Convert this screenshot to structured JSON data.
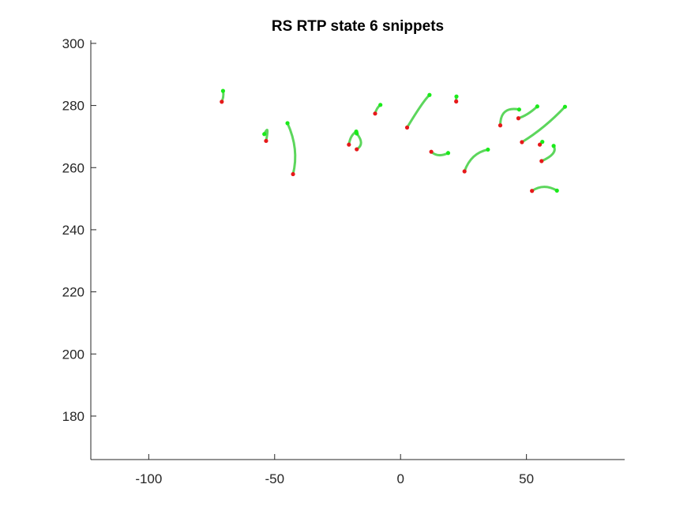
{
  "chart_data": {
    "type": "line",
    "title": "RS  RTP state 6 snippets",
    "xlabel": "",
    "ylabel": "",
    "xlim": [
      -123,
      89
    ],
    "ylim": [
      166,
      301
    ],
    "xticks": [
      -100,
      -50,
      0,
      50
    ],
    "xtick_labels": [
      "-100",
      "-50",
      "0",
      "50"
    ],
    "yticks": [
      180,
      200,
      220,
      240,
      260,
      280,
      300
    ],
    "ytick_labels": [
      "180",
      "200",
      "220",
      "240",
      "260",
      "280",
      "300"
    ],
    "grid": false,
    "legend": "none",
    "colors": {
      "path": "#5cd65c",
      "start": "#e6191a",
      "end": "#1aeb1a"
    },
    "series": [
      {
        "start": [
          -71.0,
          281.2
        ],
        "end": [
          -70.5,
          284.7
        ],
        "mid": [
          -70.4,
          283.0
        ]
      },
      {
        "start": [
          -53.4,
          268.6
        ],
        "end": [
          -54.1,
          270.8
        ],
        "mid": [
          -52.9,
          272.0
        ]
      },
      {
        "start": [
          -42.7,
          257.9
        ],
        "end": [
          -44.9,
          274.3
        ],
        "mid": [
          -42.0,
          266.0
        ]
      },
      {
        "start": [
          -20.5,
          267.4
        ],
        "end": [
          -17.6,
          271.6
        ],
        "mid": [
          -19.5,
          270.0
        ]
      },
      {
        "start": [
          -17.4,
          265.9
        ],
        "end": [
          -17.4,
          271.0
        ],
        "mid": [
          -15.7,
          268.0
        ]
      },
      {
        "start": [
          -10.1,
          277.4
        ],
        "end": [
          -8.0,
          280.2
        ],
        "mid": [
          -9.3,
          279.0
        ]
      },
      {
        "start": [
          2.6,
          272.9
        ],
        "end": [
          11.5,
          283.4
        ],
        "mid": [
          8.0,
          279.8
        ]
      },
      {
        "start": [
          12.2,
          265.1
        ],
        "end": [
          18.9,
          264.7
        ],
        "mid": [
          15.2,
          264.0
        ]
      },
      {
        "start": [
          22.1,
          281.3
        ],
        "end": [
          22.2,
          282.9
        ],
        "mid": [
          22.1,
          282.1
        ]
      },
      {
        "start": [
          25.4,
          258.8
        ],
        "end": [
          34.7,
          265.8
        ],
        "mid": [
          29.0,
          263.5
        ]
      },
      {
        "start": [
          39.6,
          273.6
        ],
        "end": [
          47.1,
          278.7
        ],
        "mid": [
          41.5,
          278.0
        ]
      },
      {
        "start": [
          46.8,
          275.9
        ],
        "end": [
          54.3,
          279.7
        ],
        "mid": [
          50.5,
          277.3
        ]
      },
      {
        "start": [
          48.2,
          268.2
        ],
        "end": [
          65.3,
          279.6
        ],
        "mid": [
          57.0,
          273.3
        ]
      },
      {
        "start": [
          55.3,
          267.4
        ],
        "end": [
          56.3,
          268.3
        ],
        "mid": [
          55.8,
          267.8
        ]
      },
      {
        "start": [
          52.2,
          252.5
        ],
        "end": [
          62.1,
          252.6
        ],
        "mid": [
          57.0,
          253.8
        ]
      },
      {
        "start": [
          56.0,
          262.1
        ],
        "end": [
          60.8,
          267.0
        ],
        "mid": [
          60.5,
          264.5
        ]
      }
    ]
  }
}
